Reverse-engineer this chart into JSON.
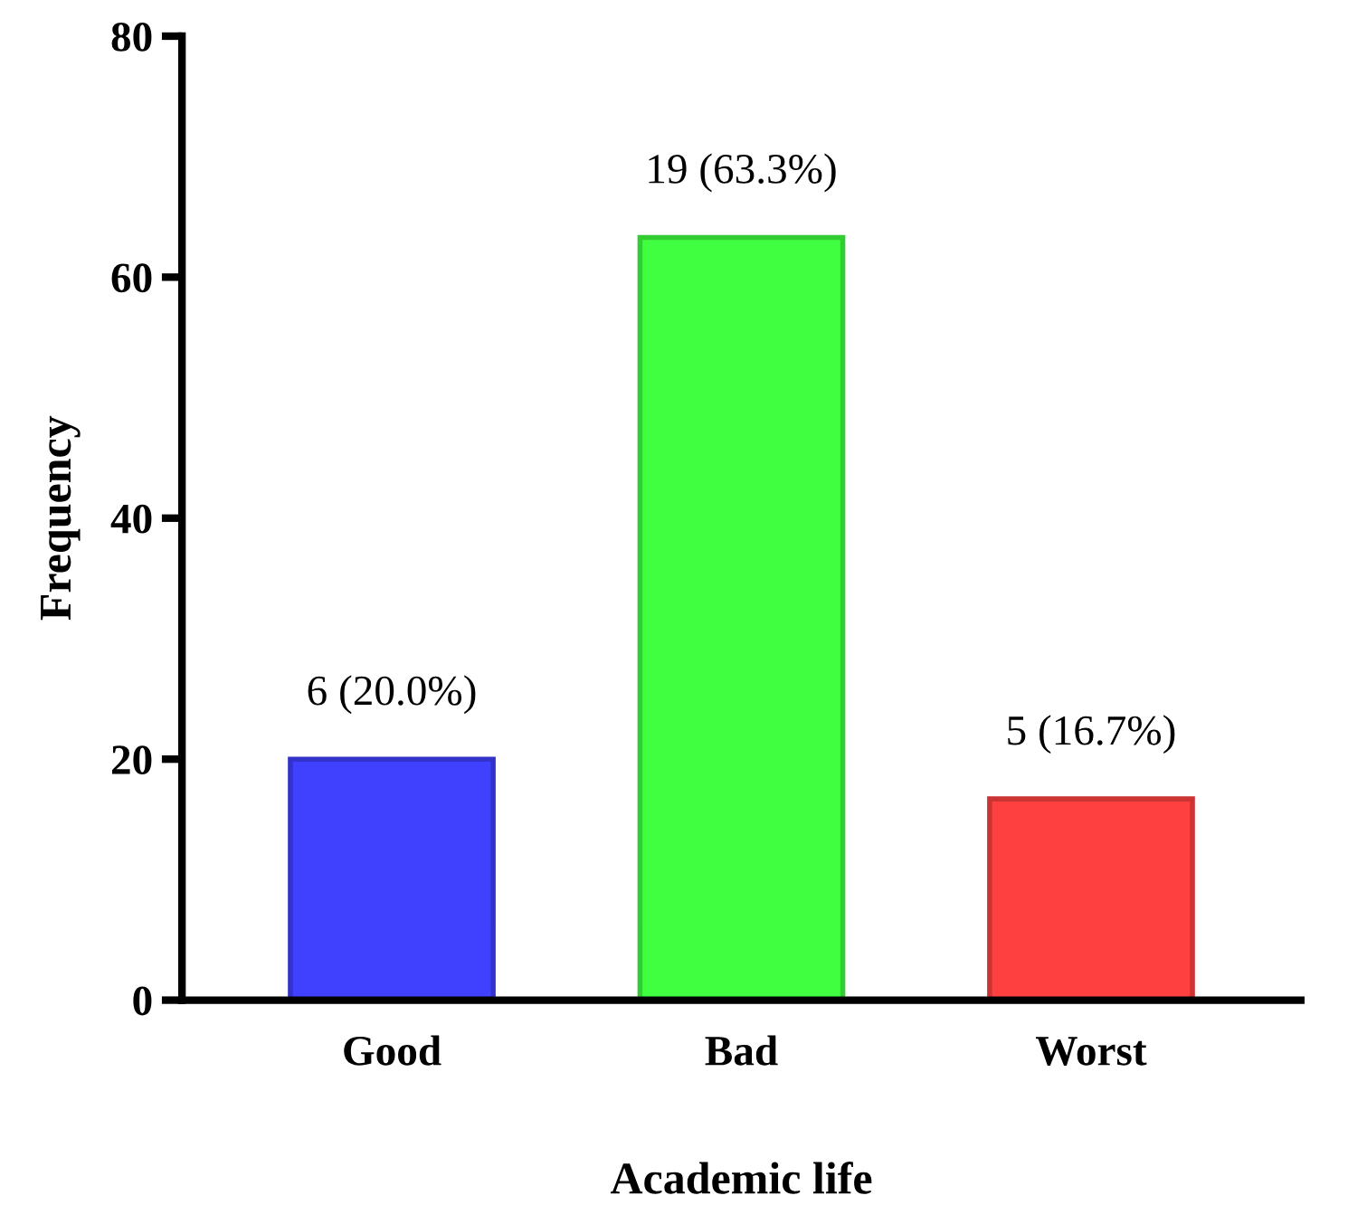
{
  "chart_data": {
    "type": "bar",
    "xlabel": "Academic life",
    "ylabel": "Frequency",
    "categories": [
      "Good",
      "Bad",
      "Worst"
    ],
    "values": [
      20.0,
      63.3,
      16.7
    ],
    "colors": [
      "#4040ff",
      "#40ff40",
      "#ff4040"
    ],
    "value_labels": [
      "6 (20.0%)",
      "19 (63.3%)",
      "5 (16.7%)"
    ],
    "ylim": [
      0,
      80
    ],
    "yticks": [
      0,
      20,
      40,
      60,
      80
    ],
    "grid": false
  }
}
